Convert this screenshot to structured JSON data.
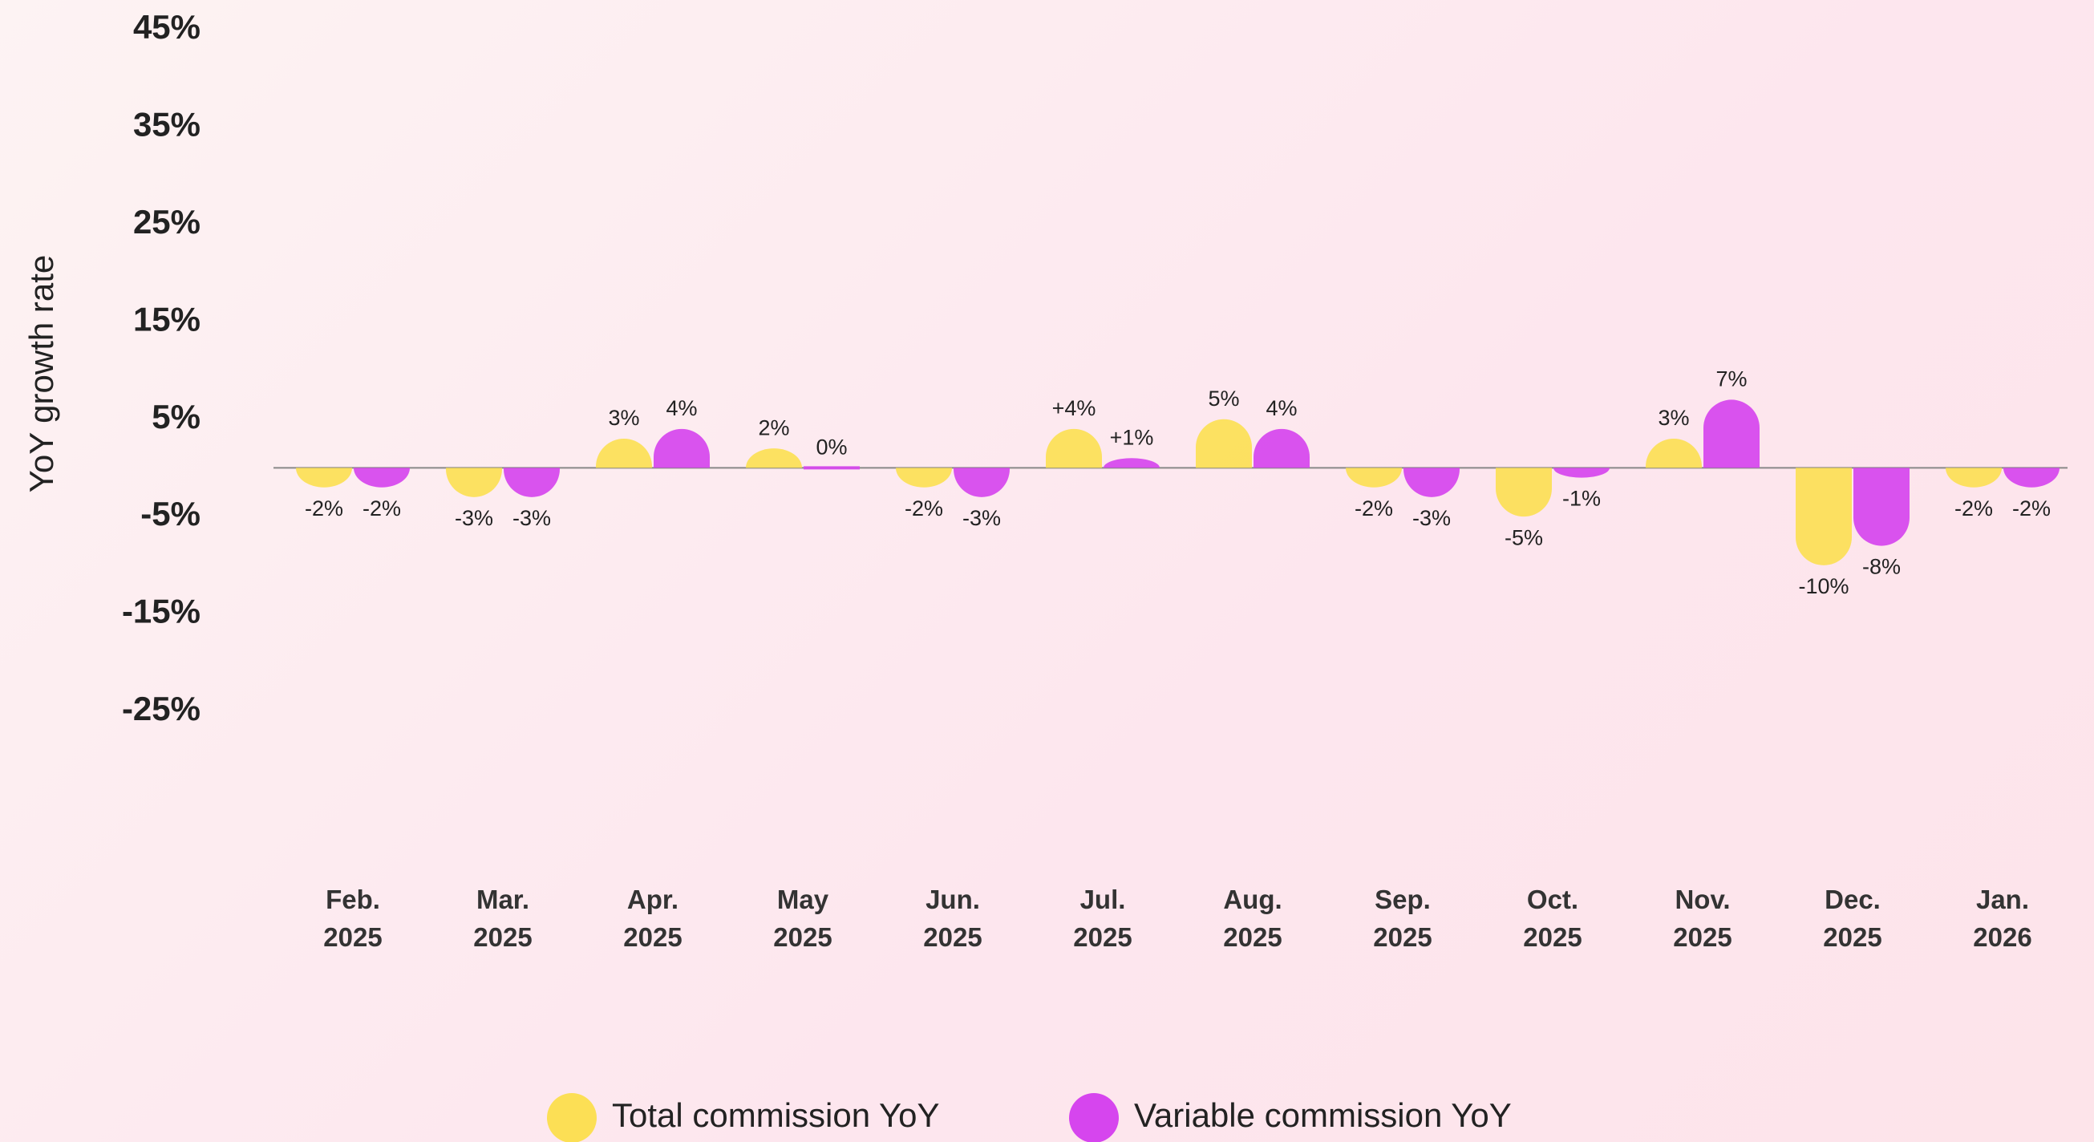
{
  "chart_data": {
    "type": "bar",
    "y_label": "YoY growth rate",
    "categories": [
      [
        "Feb.",
        "2025"
      ],
      [
        "Mar.",
        "2025"
      ],
      [
        "Apr.",
        "2025"
      ],
      [
        "May",
        "2025"
      ],
      [
        "Jun.",
        "2025"
      ],
      [
        "Jul.",
        "2025"
      ],
      [
        "Aug.",
        "2025"
      ],
      [
        "Sep.",
        "2025"
      ],
      [
        "Oct.",
        "2025"
      ],
      [
        "Nov.",
        "2025"
      ],
      [
        "Dec.",
        "2025"
      ],
      [
        "Jan.",
        "2026"
      ]
    ],
    "series": [
      {
        "name": "Total commission YoY",
        "color": "#fcdf55",
        "values": [
          -2,
          -3,
          3,
          2,
          -2,
          4,
          5,
          -2,
          -5,
          3,
          -10,
          -2
        ],
        "value_labels": [
          "-2%",
          "-3%",
          "3%",
          "2%",
          "-2%",
          "+4%",
          "5%",
          "-2%",
          "-5%",
          "3%",
          "-10%",
          "-2%"
        ]
      },
      {
        "name": "Variable commission YoY",
        "color": "#d645ee",
        "values": [
          -2,
          -3,
          4,
          0,
          -3,
          1,
          4,
          -3,
          -1,
          7,
          -8,
          -2
        ],
        "value_labels": [
          "-2%",
          "-3%",
          "4%",
          "0%",
          "-3%",
          "+1%",
          "4%",
          "-3%",
          "-1%",
          "7%",
          "-8%",
          "-2%"
        ]
      }
    ],
    "ylim": [
      -25,
      45
    ],
    "yticks": [
      {
        "value": 45,
        "label": "45%"
      },
      {
        "value": 35,
        "label": "35%"
      },
      {
        "value": 25,
        "label": "25%"
      },
      {
        "value": 15,
        "label": "15%"
      },
      {
        "value": 5,
        "label": "5%"
      },
      {
        "value": -5,
        "label": "-5%"
      },
      {
        "value": -15,
        "label": "-15%"
      },
      {
        "value": -25,
        "label": "-25%"
      }
    ],
    "legend": "bottom"
  }
}
